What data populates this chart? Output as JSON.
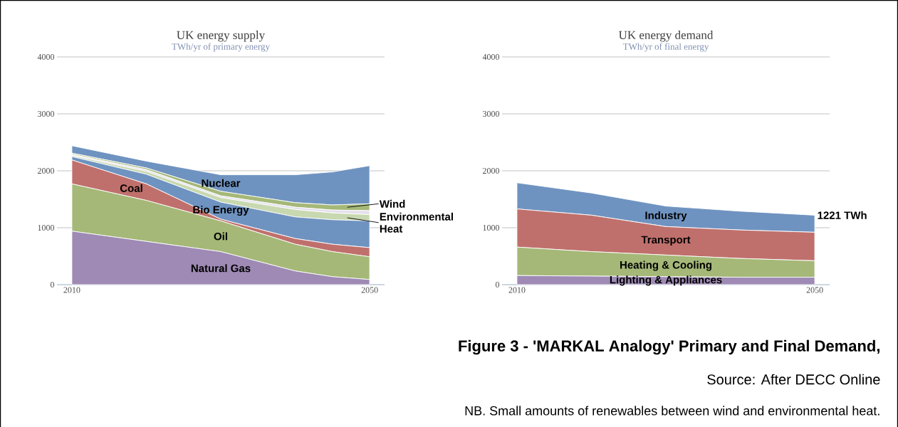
{
  "chart_data": [
    {
      "type": "area",
      "stacked": true,
      "title": "UK energy supply",
      "subtitle": "TWh/yr of primary energy",
      "x": [
        2010,
        2020,
        2030,
        2040,
        2045,
        2050
      ],
      "xlim": [
        2008,
        2052
      ],
      "ylim": [
        0,
        4000
      ],
      "xticks": [
        2010,
        2050
      ],
      "yticks": [
        0,
        1000,
        2000,
        3000,
        4000
      ],
      "grid": "y",
      "series": [
        {
          "name": "Natural Gas",
          "color": "#9e8ab4",
          "values": [
            940,
            760,
            580,
            240,
            140,
            90
          ]
        },
        {
          "name": "Oil",
          "color": "#a5b878",
          "values": [
            830,
            720,
            540,
            470,
            440,
            400
          ]
        },
        {
          "name": "Coal",
          "color": "#c0706c",
          "values": [
            420,
            290,
            30,
            100,
            130,
            160
          ]
        },
        {
          "name": "Bio Energy",
          "color": "#6f93c0",
          "values": [
            60,
            170,
            300,
            380,
            430,
            470
          ]
        },
        {
          "name": "Environmental Heat",
          "color": "#c8d8b0",
          "values": [
            20,
            50,
            80,
            130,
            120,
            110
          ]
        },
        {
          "color": "#e4e0ec",
          "values": [
            20,
            30,
            30,
            40,
            50,
            70
          ]
        },
        {
          "name": "Wind",
          "color": "#a5b878",
          "values": [
            20,
            30,
            80,
            80,
            90,
            120
          ]
        },
        {
          "name": "Nuclear",
          "color": "#6f93c0",
          "values": [
            130,
            120,
            290,
            490,
            580,
            670
          ]
        }
      ]
    },
    {
      "type": "area",
      "stacked": true,
      "title": "UK energy demand",
      "subtitle": "TWh/yr of final energy",
      "x": [
        2010,
        2020,
        2030,
        2040,
        2050
      ],
      "xlim": [
        2008,
        2052
      ],
      "ylim": [
        0,
        4000
      ],
      "xticks": [
        2010,
        2050
      ],
      "yticks": [
        0,
        1000,
        2000,
        3000,
        4000
      ],
      "grid": "y",
      "annotations": [
        {
          "text": "1221 TWh",
          "x": 2050,
          "y": 1221
        }
      ],
      "series": [
        {
          "name": "Lighting & Appliances",
          "color": "#9e8ab4",
          "values": [
            160,
            150,
            140,
            130,
            130
          ]
        },
        {
          "name": "Heating & Cooling",
          "color": "#a5b878",
          "values": [
            500,
            430,
            380,
            330,
            290
          ]
        },
        {
          "name": "Transport",
          "color": "#c0706c",
          "values": [
            670,
            640,
            500,
            500,
            500
          ]
        },
        {
          "name": "Industry",
          "color": "#6f93c0",
          "values": [
            460,
            390,
            360,
            330,
            300
          ]
        }
      ]
    },
    {
      "type": "other",
      "title": "Figure 3 - 'MARKAL Analogy' Primary and Final Demand,",
      "annotations": [
        "Source: After DECC Online",
        "NB. Small amounts of renewables between wind and environmental heat."
      ]
    }
  ]
}
